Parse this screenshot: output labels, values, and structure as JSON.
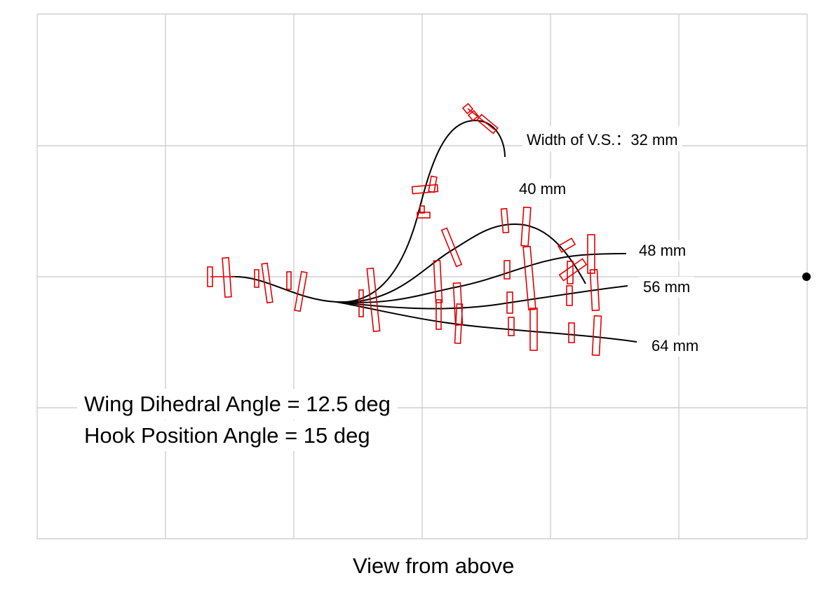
{
  "title": "View from above",
  "parameters": {
    "wing_dihedral": "Wing Dihedral Angle  = 12.5 deg",
    "hook_position": "Hook Position Angle  = 15 deg"
  },
  "trajectories": [
    {
      "label": "Width of V.S.：32 mm",
      "width_mm": 32
    },
    {
      "label": "40 mm",
      "width_mm": 40
    },
    {
      "label": "48 mm",
      "width_mm": 48
    },
    {
      "label": "56 mm",
      "width_mm": 56
    },
    {
      "label": "64 mm",
      "width_mm": 64
    }
  ],
  "colors": {
    "trajectory": "#000000",
    "glider": "#e00000",
    "grid": "#c8c8c8"
  }
}
